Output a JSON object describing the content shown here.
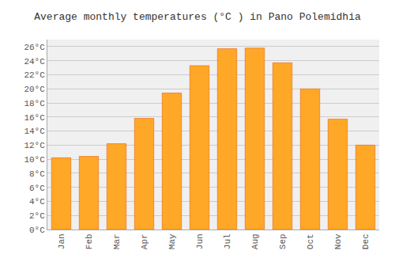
{
  "chart_data": {
    "type": "bar",
    "title": "Average monthly temperatures (°C ) in Pano Polemidhia",
    "categories": [
      "Jan",
      "Feb",
      "Mar",
      "Apr",
      "May",
      "Jun",
      "Jul",
      "Aug",
      "Sep",
      "Oct",
      "Nov",
      "Dec"
    ],
    "values": [
      10.2,
      10.4,
      12.2,
      15.8,
      19.4,
      23.3,
      25.7,
      25.8,
      23.7,
      20.0,
      15.7,
      12.0
    ],
    "color": "#FFA726",
    "ylim": [
      0,
      27
    ],
    "yticks": [
      {
        "value": 0,
        "label": "0°C"
      },
      {
        "value": 2,
        "label": "2°C"
      },
      {
        "value": 4,
        "label": "4°C"
      },
      {
        "value": 6,
        "label": "6°C"
      },
      {
        "value": 8,
        "label": "8°C"
      },
      {
        "value": 10,
        "label": "10°C"
      },
      {
        "value": 12,
        "label": "12°C"
      },
      {
        "value": 14,
        "label": "14°C"
      },
      {
        "value": 16,
        "label": "16°C"
      },
      {
        "value": 18,
        "label": "18°C"
      },
      {
        "value": 20,
        "label": "20°C"
      },
      {
        "value": 22,
        "label": "22°C"
      },
      {
        "value": 24,
        "label": "24°C"
      },
      {
        "value": 26,
        "label": "26°C"
      }
    ],
    "grid": true
  }
}
